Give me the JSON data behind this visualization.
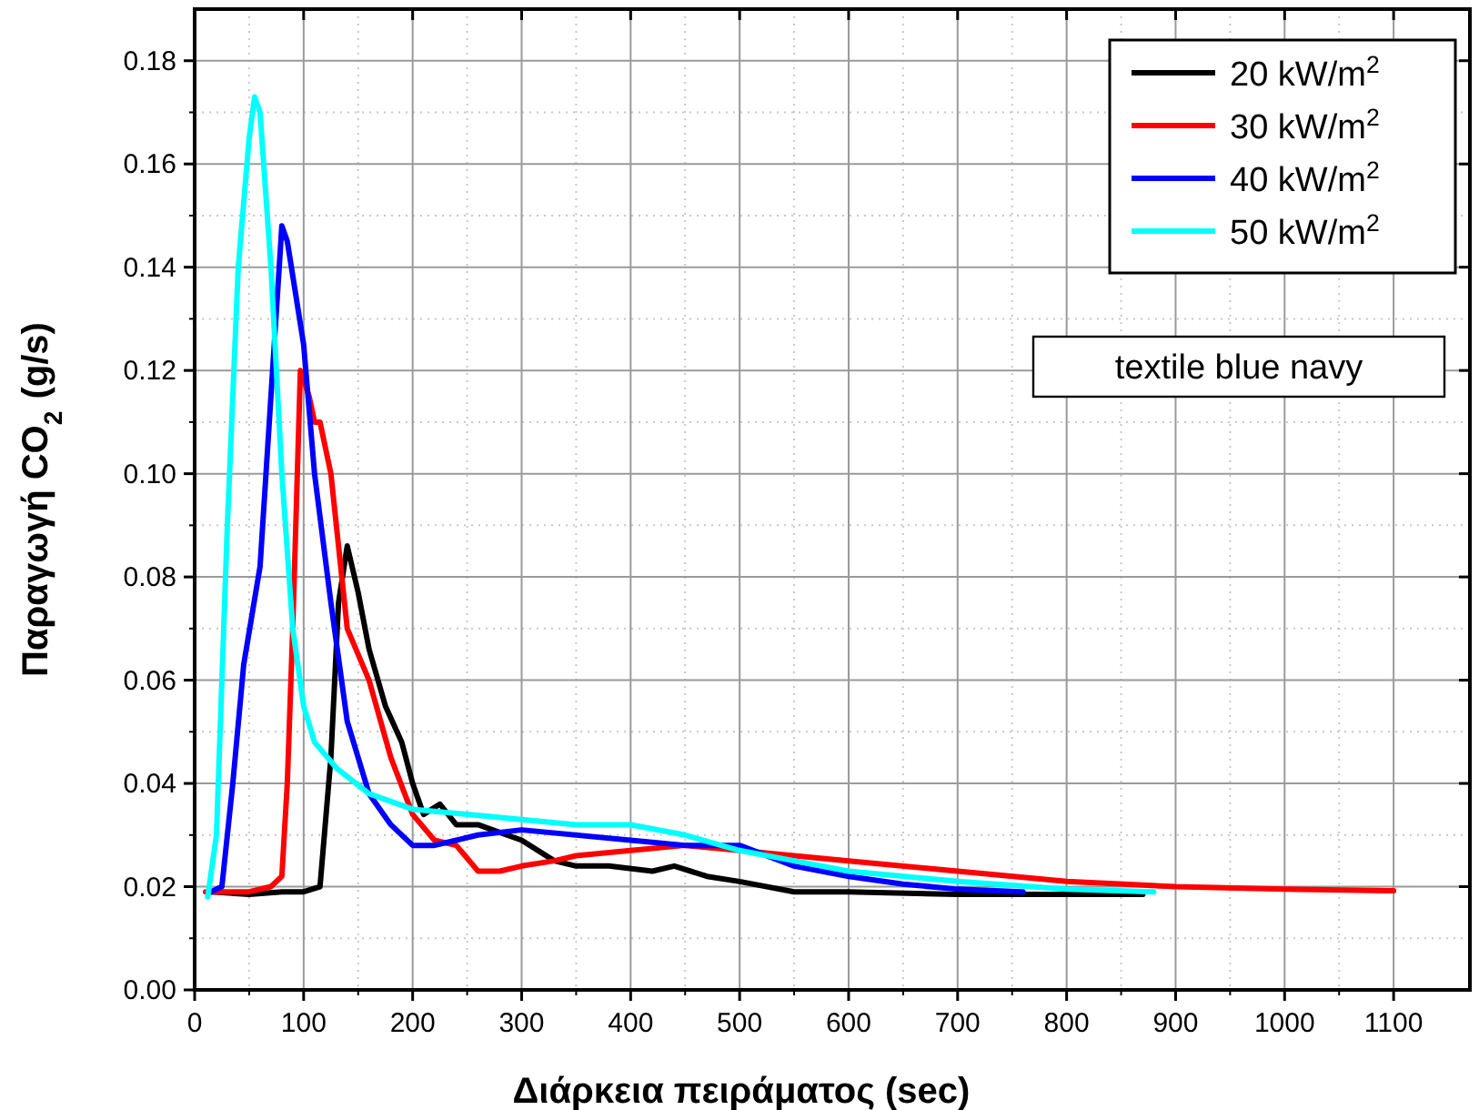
{
  "chart_data": {
    "type": "line",
    "xlabel": "Διάρκεια πειράματος (sec)",
    "ylabel": "Παραγωγή CO$_{2}$ (g/s)",
    "xlim": [
      0,
      1170
    ],
    "xticks": [
      0,
      100,
      200,
      300,
      400,
      500,
      600,
      700,
      800,
      900,
      1000,
      1100
    ],
    "ylim": [
      0,
      0.19
    ],
    "yticks": [
      {
        "value": 0,
        "label": "0.00"
      },
      {
        "value": 0.02,
        "label": "0.02"
      },
      {
        "value": 0.04,
        "label": "0.04"
      },
      {
        "value": 0.06,
        "label": "0.06"
      },
      {
        "value": 0.08,
        "label": "0.08"
      },
      {
        "value": 0.1,
        "label": "0.10"
      },
      {
        "value": 0.12,
        "label": "0.12"
      },
      {
        "value": 0.14,
        "label": "0.14"
      },
      {
        "value": 0.16,
        "label": "0.16"
      },
      {
        "value": 0.18,
        "label": "0.18"
      }
    ],
    "grid": true,
    "legend": "top right",
    "line_style": "solid",
    "annotations": [
      "textile blue navy"
    ],
    "series": [
      {
        "name": "20 kW/m$^{2}$",
        "color": "#000000",
        "x": [
          15,
          50,
          80,
          100,
          115,
          125,
          132,
          140,
          150,
          160,
          175,
          190,
          200,
          210,
          225,
          240,
          260,
          300,
          330,
          350,
          380,
          420,
          440,
          470,
          500,
          550,
          600,
          700,
          800,
          870
        ],
        "values": [
          0.019,
          0.0185,
          0.019,
          0.019,
          0.02,
          0.045,
          0.075,
          0.086,
          0.077,
          0.066,
          0.055,
          0.048,
          0.04,
          0.034,
          0.036,
          0.032,
          0.032,
          0.029,
          0.025,
          0.024,
          0.024,
          0.023,
          0.024,
          0.022,
          0.021,
          0.019,
          0.019,
          0.0185,
          0.0185,
          0.0185
        ]
      },
      {
        "name": "30 kW/m$^{2}$",
        "color": "#ff0000",
        "x": [
          10,
          50,
          70,
          80,
          85,
          90,
          97,
          105,
          110,
          115,
          125,
          140,
          160,
          180,
          200,
          220,
          240,
          260,
          280,
          300,
          330,
          350,
          400,
          450,
          500,
          550,
          600,
          700,
          800,
          900,
          1000,
          1100
        ],
        "values": [
          0.019,
          0.019,
          0.02,
          0.022,
          0.04,
          0.07,
          0.12,
          0.115,
          0.11,
          0.11,
          0.1,
          0.07,
          0.06,
          0.045,
          0.034,
          0.029,
          0.028,
          0.023,
          0.023,
          0.024,
          0.025,
          0.026,
          0.027,
          0.028,
          0.027,
          0.026,
          0.025,
          0.023,
          0.021,
          0.02,
          0.0195,
          0.0192
        ]
      },
      {
        "name": "40 kW/m$^{2}$",
        "color": "#0000ff",
        "x": [
          15,
          25,
          35,
          45,
          60,
          70,
          80,
          85,
          100,
          110,
          125,
          140,
          160,
          180,
          200,
          220,
          240,
          260,
          300,
          400,
          450,
          500,
          550,
          600,
          650,
          700,
          760
        ],
        "values": [
          0.019,
          0.02,
          0.04,
          0.063,
          0.082,
          0.115,
          0.148,
          0.145,
          0.125,
          0.1,
          0.075,
          0.052,
          0.038,
          0.032,
          0.028,
          0.028,
          0.029,
          0.03,
          0.031,
          0.029,
          0.028,
          0.028,
          0.024,
          0.022,
          0.0205,
          0.0195,
          0.019
        ]
      },
      {
        "name": "50 kW/m$^{2}$",
        "color": "#00ffff",
        "x": [
          12,
          20,
          25,
          30,
          40,
          50,
          55,
          60,
          70,
          80,
          90,
          100,
          110,
          130,
          160,
          200,
          250,
          300,
          350,
          400,
          450,
          500,
          550,
          600,
          700,
          800,
          880
        ],
        "values": [
          0.018,
          0.03,
          0.06,
          0.09,
          0.14,
          0.165,
          0.173,
          0.17,
          0.14,
          0.1,
          0.07,
          0.055,
          0.048,
          0.043,
          0.038,
          0.035,
          0.034,
          0.033,
          0.032,
          0.032,
          0.03,
          0.027,
          0.025,
          0.023,
          0.021,
          0.0195,
          0.019
        ]
      }
    ]
  }
}
